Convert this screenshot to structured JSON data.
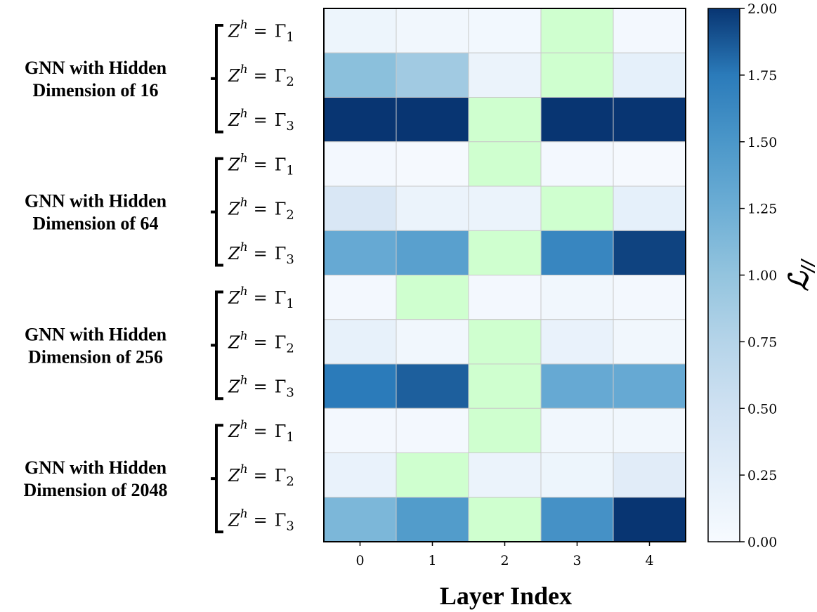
{
  "chart_data": {
    "type": "heatmap",
    "xlabel": "Layer Index",
    "x_ticks": [
      "0",
      "1",
      "2",
      "3",
      "4"
    ],
    "colorbar": {
      "label": "ℒ//",
      "cmap": "Blues",
      "range": [
        0.0,
        2.0
      ],
      "ticks": [
        "0.00",
        "0.25",
        "0.50",
        "0.75",
        "1.00",
        "1.25",
        "1.50",
        "1.75",
        "2.00"
      ],
      "min_highlight_color": "#cfffcf"
    },
    "row_label": {
      "lhs": "Z",
      "sup": "h",
      "eq": "=",
      "sym": "Γ"
    },
    "groups": [
      {
        "label_lines": [
          "GNN with Hidden",
          "Dimension of 16"
        ],
        "rows": [
          {
            "sub": "1",
            "values": [
              0.12,
              0.07,
              0.06,
              0.0,
              0.05
            ],
            "min_index": 3
          },
          {
            "sub": "2",
            "values": [
              1.05,
              0.9,
              0.15,
              0.0,
              0.22
            ],
            "min_index": 3
          },
          {
            "sub": "3",
            "values": [
              2.0,
              2.0,
              0.0,
              2.0,
              2.0
            ],
            "min_index": 2
          }
        ]
      },
      {
        "label_lines": [
          "GNN with Hidden",
          "Dimension of 64"
        ],
        "rows": [
          {
            "sub": "1",
            "values": [
              0.05,
              0.03,
              0.0,
              0.05,
              0.03
            ],
            "min_index": 2
          },
          {
            "sub": "2",
            "values": [
              0.38,
              0.15,
              0.15,
              0.0,
              0.22
            ],
            "min_index": 3
          },
          {
            "sub": "3",
            "values": [
              1.3,
              1.4,
              0.0,
              1.65,
              1.95
            ],
            "min_index": 2
          }
        ]
      },
      {
        "label_lines": [
          "GNN with Hidden",
          "Dimension of 256"
        ],
        "rows": [
          {
            "sub": "1",
            "values": [
              0.05,
              0.0,
              0.05,
              0.07,
              0.05
            ],
            "min_index": 1
          },
          {
            "sub": "2",
            "values": [
              0.2,
              0.07,
              0.0,
              0.18,
              0.07
            ],
            "min_index": 2
          },
          {
            "sub": "3",
            "values": [
              1.75,
              1.85,
              0.0,
              1.3,
              1.3
            ],
            "min_index": 2
          }
        ]
      },
      {
        "label_lines": [
          "GNN with Hidden",
          "Dimension of 2048"
        ],
        "rows": [
          {
            "sub": "1",
            "values": [
              0.05,
              0.05,
              0.0,
              0.07,
              0.07
            ],
            "min_index": 2
          },
          {
            "sub": "2",
            "values": [
              0.18,
              0.0,
              0.15,
              0.12,
              0.28
            ],
            "min_index": 1
          },
          {
            "sub": "3",
            "values": [
              1.15,
              1.45,
              0.0,
              1.55,
              2.0
            ],
            "min_index": 2
          }
        ]
      }
    ]
  }
}
